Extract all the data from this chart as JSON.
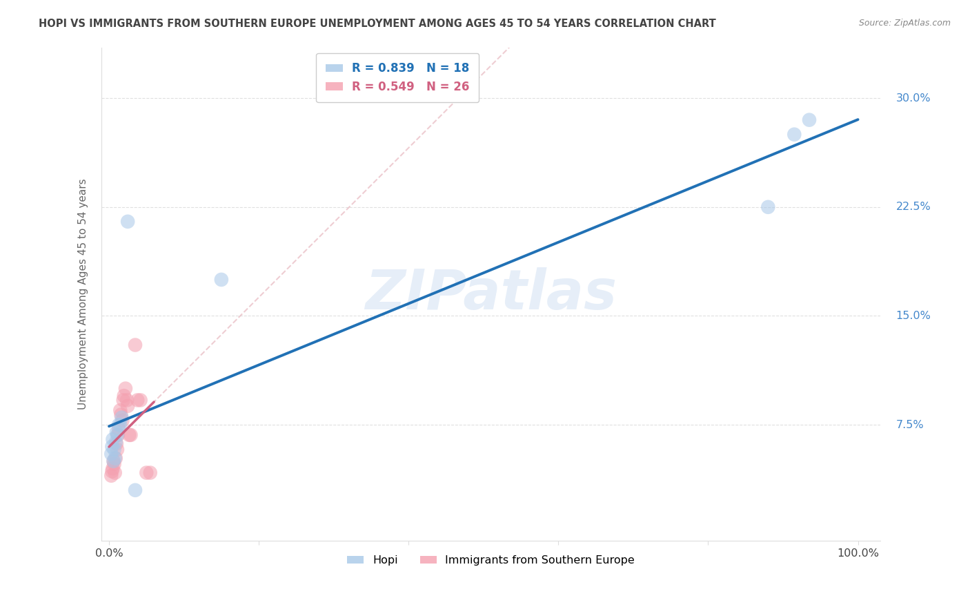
{
  "title": "HOPI VS IMMIGRANTS FROM SOUTHERN EUROPE UNEMPLOYMENT AMONG AGES 45 TO 54 YEARS CORRELATION CHART",
  "source": "Source: ZipAtlas.com",
  "ylabel": "Unemployment Among Ages 45 to 54 years",
  "xlim": [
    -0.01,
    1.03
  ],
  "ylim": [
    -0.005,
    0.335
  ],
  "ytick_positions": [
    0.075,
    0.15,
    0.225,
    0.3
  ],
  "ytick_labels": [
    "7.5%",
    "15.0%",
    "22.5%",
    "30.0%"
  ],
  "xtick_positions": [
    0.0,
    0.2,
    0.4,
    0.6,
    0.8,
    1.0
  ],
  "xtick_labels": [
    "0.0%",
    "",
    "",
    "",
    "",
    "100.0%"
  ],
  "hopi_points": [
    [
      0.003,
      0.055
    ],
    [
      0.004,
      0.06
    ],
    [
      0.005,
      0.065
    ],
    [
      0.006,
      0.05
    ],
    [
      0.007,
      0.058
    ],
    [
      0.008,
      0.052
    ],
    [
      0.009,
      0.063
    ],
    [
      0.01,
      0.07
    ],
    [
      0.011,
      0.068
    ],
    [
      0.013,
      0.075
    ],
    [
      0.015,
      0.075
    ],
    [
      0.017,
      0.08
    ],
    [
      0.025,
      0.215
    ],
    [
      0.035,
      0.03
    ],
    [
      0.15,
      0.175
    ],
    [
      0.88,
      0.225
    ],
    [
      0.915,
      0.275
    ],
    [
      0.935,
      0.285
    ]
  ],
  "imm_points": [
    [
      0.003,
      0.04
    ],
    [
      0.004,
      0.043
    ],
    [
      0.005,
      0.045
    ],
    [
      0.006,
      0.05
    ],
    [
      0.007,
      0.048
    ],
    [
      0.008,
      0.042
    ],
    [
      0.009,
      0.052
    ],
    [
      0.01,
      0.062
    ],
    [
      0.011,
      0.058
    ],
    [
      0.012,
      0.068
    ],
    [
      0.013,
      0.072
    ],
    [
      0.015,
      0.085
    ],
    [
      0.016,
      0.082
    ],
    [
      0.018,
      0.078
    ],
    [
      0.019,
      0.092
    ],
    [
      0.02,
      0.095
    ],
    [
      0.022,
      0.1
    ],
    [
      0.024,
      0.092
    ],
    [
      0.025,
      0.088
    ],
    [
      0.027,
      0.068
    ],
    [
      0.029,
      0.068
    ],
    [
      0.035,
      0.13
    ],
    [
      0.038,
      0.092
    ],
    [
      0.042,
      0.092
    ],
    [
      0.05,
      0.042
    ],
    [
      0.055,
      0.042
    ]
  ],
  "hopi_color": "#a8c8e8",
  "imm_color": "#f4a0b0",
  "hopi_line_color": "#2171b5",
  "imm_line_color": "#d06080",
  "diag_color": "#e8b8c0",
  "diag_alpha": 0.7,
  "watermark_text": "ZIPatlas",
  "watermark_color": "#c8daf0",
  "R_hopi": 0.839,
  "N_hopi": 18,
  "R_imm": 0.549,
  "N_imm": 26,
  "background_color": "#ffffff",
  "grid_color": "#dddddd",
  "title_color": "#444444",
  "source_color": "#888888",
  "ylabel_color": "#666666",
  "ytick_color": "#4488cc",
  "xtick_color": "#444444"
}
